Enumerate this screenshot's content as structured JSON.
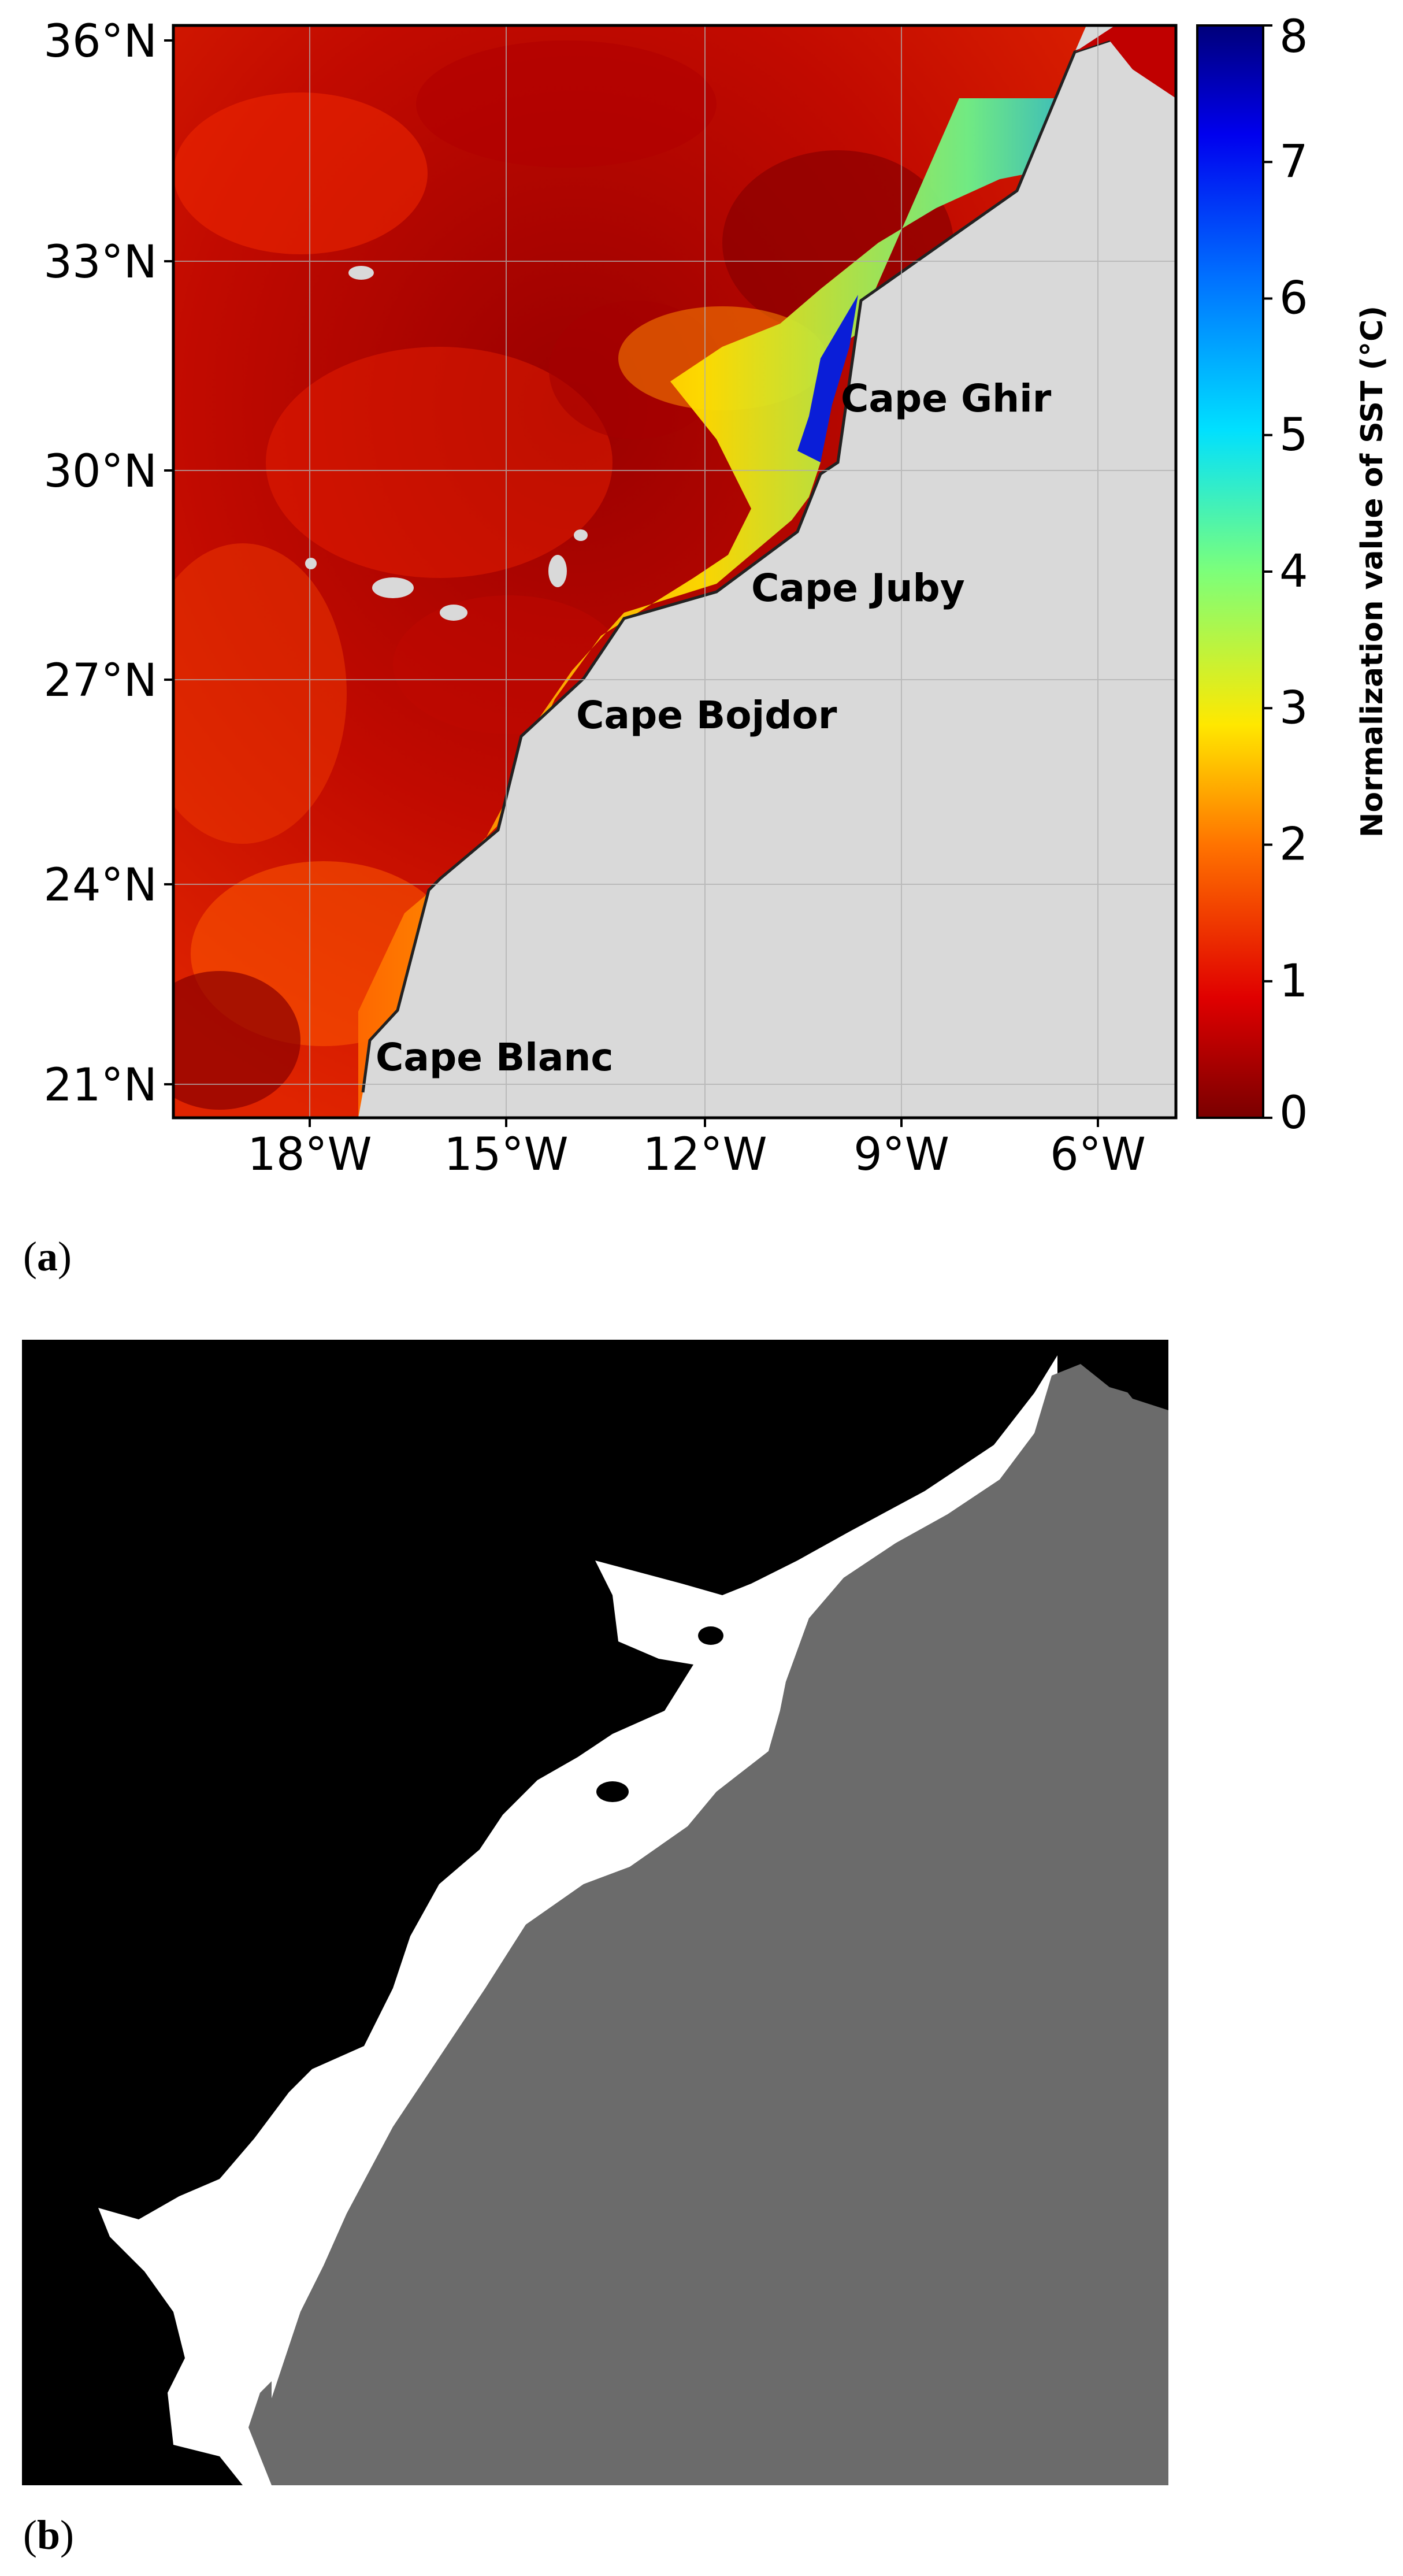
{
  "panel_a": {
    "label_parts": [
      "(",
      "a",
      ")"
    ],
    "y_ticks": [
      "36°N",
      "33°N",
      "30°N",
      "27°N",
      "24°N",
      "21°N"
    ],
    "x_ticks": [
      "18°W",
      "15°W",
      "12°W",
      "9°W",
      "6°W"
    ],
    "capes": [
      "Cape Ghir",
      "Cape Juby",
      "Cape Bojdor",
      "Cape Blanc"
    ],
    "colorbar": {
      "label": "Normalization value of SST (°C)",
      "ticks": [
        "0",
        "1",
        "2",
        "3",
        "4",
        "5",
        "6",
        "7",
        "8"
      ],
      "range": [
        0,
        8
      ],
      "colormap": "jet_r"
    },
    "colors": {
      "land": "#d9d9d9",
      "coastline": "#222222",
      "grid": "#b0b0b0",
      "ocean_low": "#8b0000",
      "ocean_mid": "#ff2a00",
      "ocean_high": "#00008b"
    }
  },
  "panel_b": {
    "label_parts": [
      "(",
      "b",
      ")"
    ],
    "colors": {
      "ocean": "#000000",
      "upwelling": "#ffffff",
      "land": "#6b6b6b"
    }
  }
}
